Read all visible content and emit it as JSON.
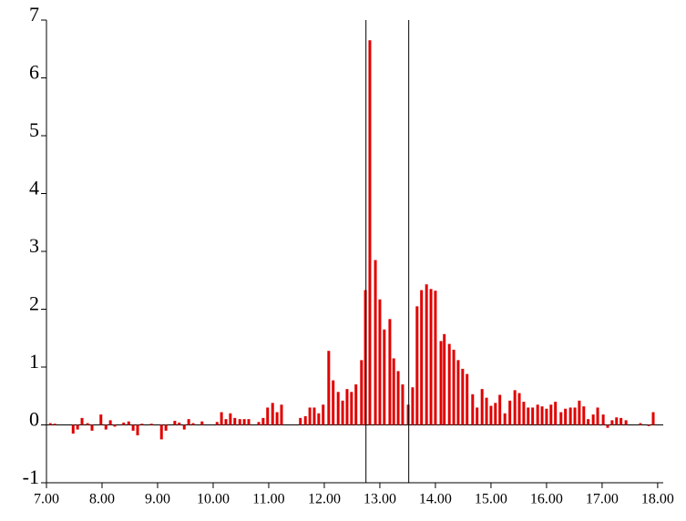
{
  "chart_data": {
    "type": "bar",
    "color": "#e00000",
    "x": [
      7.07,
      7.15,
      7.48,
      7.56,
      7.64,
      7.74,
      7.82,
      7.98,
      8.07,
      8.15,
      8.23,
      8.39,
      8.48,
      8.56,
      8.64,
      8.72,
      8.89,
      9.07,
      9.15,
      9.31,
      9.39,
      9.48,
      9.56,
      9.64,
      9.8,
      10.07,
      10.15,
      10.23,
      10.31,
      10.39,
      10.48,
      10.56,
      10.64,
      10.82,
      10.9,
      10.98,
      11.07,
      11.15,
      11.23,
      11.57,
      11.66,
      11.74,
      11.82,
      11.9,
      11.98,
      12.08,
      12.16,
      12.25,
      12.33,
      12.41,
      12.49,
      12.57,
      12.67,
      12.74,
      12.82,
      12.92,
      13.0,
      13.08,
      13.18,
      13.25,
      13.33,
      13.41,
      13.51,
      13.59,
      13.67,
      13.75,
      13.84,
      13.92,
      14.0,
      14.1,
      14.16,
      14.25,
      14.33,
      14.41,
      14.49,
      14.57,
      14.67,
      14.75,
      14.84,
      14.92,
      15.0,
      15.08,
      15.16,
      15.25,
      15.34,
      15.43,
      15.51,
      15.59,
      15.67,
      15.75,
      15.84,
      15.92,
      16.0,
      16.08,
      16.16,
      16.26,
      16.34,
      16.43,
      16.51,
      16.59,
      16.67,
      16.75,
      16.84,
      16.92,
      17.02,
      17.1,
      17.18,
      17.26,
      17.34,
      17.43,
      17.69,
      17.84,
      17.92
    ],
    "values": [
      0.03,
      0.02,
      -0.15,
      -0.08,
      0.12,
      0.03,
      -0.1,
      0.18,
      -0.08,
      0.08,
      -0.03,
      0.04,
      0.06,
      -0.1,
      -0.18,
      0.02,
      0.02,
      -0.25,
      -0.1,
      0.07,
      0.04,
      -0.08,
      0.1,
      0.03,
      0.06,
      0.05,
      0.22,
      0.1,
      0.2,
      0.12,
      0.1,
      0.1,
      0.1,
      0.05,
      0.12,
      0.3,
      0.38,
      0.22,
      0.35,
      0.12,
      0.15,
      0.3,
      0.3,
      0.2,
      0.35,
      1.28,
      0.77,
      0.57,
      0.42,
      0.62,
      0.57,
      0.7,
      1.12,
      2.33,
      6.65,
      2.85,
      2.17,
      1.65,
      1.83,
      1.15,
      0.93,
      0.7,
      0.35,
      0.65,
      2.05,
      2.33,
      2.43,
      2.35,
      2.32,
      1.45,
      1.57,
      1.4,
      1.3,
      1.12,
      0.97,
      0.88,
      0.53,
      0.3,
      0.62,
      0.47,
      0.33,
      0.38,
      0.52,
      0.2,
      0.42,
      0.6,
      0.55,
      0.4,
      0.3,
      0.3,
      0.35,
      0.32,
      0.28,
      0.35,
      0.4,
      0.22,
      0.28,
      0.3,
      0.3,
      0.42,
      0.32,
      0.1,
      0.18,
      0.3,
      0.18,
      -0.05,
      0.08,
      0.13,
      0.12,
      0.08,
      0.03,
      -0.02,
      0.22
    ],
    "vlines": [
      12.75,
      13.52
    ],
    "xlim": [
      7,
      18.1
    ],
    "ylim": [
      -1,
      7
    ],
    "xticks": [
      {
        "value": 7,
        "label": "7.00"
      },
      {
        "value": 8,
        "label": "8.00"
      },
      {
        "value": 9,
        "label": "9.00"
      },
      {
        "value": 10,
        "label": "10.00"
      },
      {
        "value": 11,
        "label": "11.00"
      },
      {
        "value": 12,
        "label": "12.00"
      },
      {
        "value": 13,
        "label": "13.00"
      },
      {
        "value": 14,
        "label": "14.00"
      },
      {
        "value": 15,
        "label": "15.00"
      },
      {
        "value": 16,
        "label": "16.00"
      },
      {
        "value": 17,
        "label": "17.00"
      },
      {
        "value": 18,
        "label": "18.00"
      }
    ],
    "yticks": [
      -1,
      0,
      1,
      2,
      3,
      4,
      5,
      6,
      7
    ]
  }
}
